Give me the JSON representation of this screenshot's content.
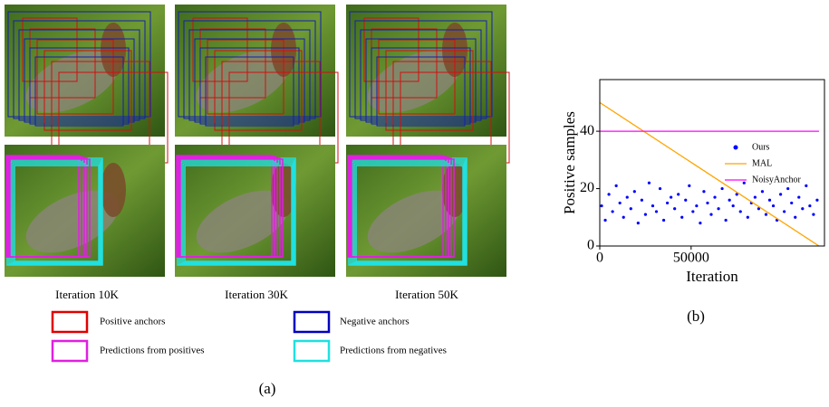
{
  "panel_a": {
    "captions": [
      "Iteration 10K",
      "Iteration 30K",
      "Iteration 50K"
    ],
    "legend": [
      "Positive anchors",
      "Negative anchors",
      "Predictions from positives",
      "Predictions from negatives"
    ],
    "label": "(a)"
  },
  "chart_data": {
    "type": "scatter-line",
    "label": "(b)",
    "xlabel": "Iteration",
    "ylabel": "Positive samples",
    "xlim": [
      0,
      123000
    ],
    "ylim": [
      0,
      58
    ],
    "xticks": [
      0,
      50000
    ],
    "yticks": [
      0,
      20,
      40
    ],
    "legend_position": "center right",
    "series": [
      {
        "name": "Ours",
        "color": "#0000ff",
        "kind": "scatter",
        "x": [
          1000,
          3000,
          5000,
          7000,
          9000,
          11000,
          13000,
          15000,
          17000,
          19000,
          21000,
          23000,
          25000,
          27000,
          29000,
          31000,
          33000,
          35000,
          37000,
          39000,
          41000,
          43000,
          45000,
          47000,
          49000,
          51000,
          53000,
          55000,
          57000,
          59000,
          61000,
          63000,
          65000,
          67000,
          69000,
          71000,
          73000,
          75000,
          77000,
          79000,
          81000,
          83000,
          85000,
          87000,
          89000,
          91000,
          93000,
          95000,
          97000,
          99000,
          101000,
          103000,
          105000,
          107000,
          109000,
          111000,
          113000,
          115000,
          117000,
          119000
        ],
        "values": [
          14,
          9,
          18,
          12,
          21,
          15,
          10,
          17,
          13,
          19,
          8,
          16,
          11,
          22,
          14,
          12,
          20,
          9,
          15,
          17,
          13,
          18,
          10,
          16,
          21,
          12,
          14,
          8,
          19,
          15,
          11,
          17,
          13,
          20,
          9,
          16,
          14,
          18,
          12,
          22,
          10,
          15,
          17,
          13,
          19,
          11,
          16,
          14,
          9,
          18,
          12,
          20,
          15,
          10,
          17,
          13,
          21,
          14,
          11,
          16
        ]
      },
      {
        "name": "MAL",
        "color": "#ffa500",
        "kind": "line",
        "x": [
          0,
          120000
        ],
        "values": [
          50,
          0
        ]
      },
      {
        "name": "NoisyAnchor",
        "color": "#ff00ff",
        "kind": "line",
        "x": [
          0,
          120000
        ],
        "values": [
          40,
          40
        ]
      }
    ]
  }
}
